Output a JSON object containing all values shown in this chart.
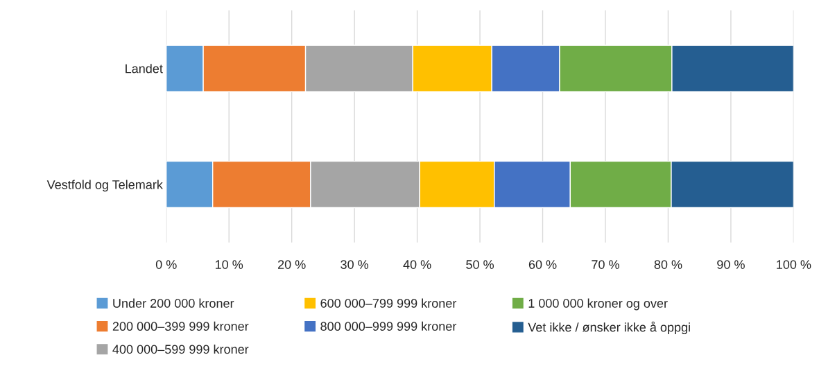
{
  "chart_data": {
    "type": "bar",
    "orientation": "horizontal",
    "stacked": true,
    "categories": [
      "Landet",
      "Vestfold og Telemark"
    ],
    "series": [
      {
        "name": "Under 200 000 kroner",
        "color": "#5b9bd5",
        "values": [
          5.9,
          7.4
        ]
      },
      {
        "name": "200 000–399 999 kroner",
        "color": "#ed7d31",
        "values": [
          16.3,
          15.6
        ]
      },
      {
        "name": "400 000–599 999 kroner",
        "color": "#a5a5a5",
        "values": [
          17.1,
          17.4
        ]
      },
      {
        "name": "600 000–799 999 kroner",
        "color": "#ffc000",
        "values": [
          12.6,
          11.9
        ]
      },
      {
        "name": "800 000–999 999 kroner",
        "color": "#4472c4",
        "values": [
          10.8,
          12.1
        ]
      },
      {
        "name": "1 000 000 kroner og over",
        "color": "#70ad47",
        "values": [
          17.9,
          16.1
        ]
      },
      {
        "name": "Vet ikke / ønsker ikke å oppgi",
        "color": "#255e91",
        "values": [
          19.4,
          19.5
        ]
      }
    ],
    "xlim": [
      0,
      100
    ],
    "xticks": [
      {
        "value": 0,
        "label": "0 %"
      },
      {
        "value": 10,
        "label": "10 %"
      },
      {
        "value": 20,
        "label": "20 %"
      },
      {
        "value": 30,
        "label": "30 %"
      },
      {
        "value": 40,
        "label": "40 %"
      },
      {
        "value": 50,
        "label": "50 %"
      },
      {
        "value": 60,
        "label": "60 %"
      },
      {
        "value": 70,
        "label": "70 %"
      },
      {
        "value": 80,
        "label": "80 %"
      },
      {
        "value": 90,
        "label": "90 %"
      },
      {
        "value": 100,
        "label": "100 %"
      }
    ],
    "grid": "x",
    "legend": "bottom"
  }
}
